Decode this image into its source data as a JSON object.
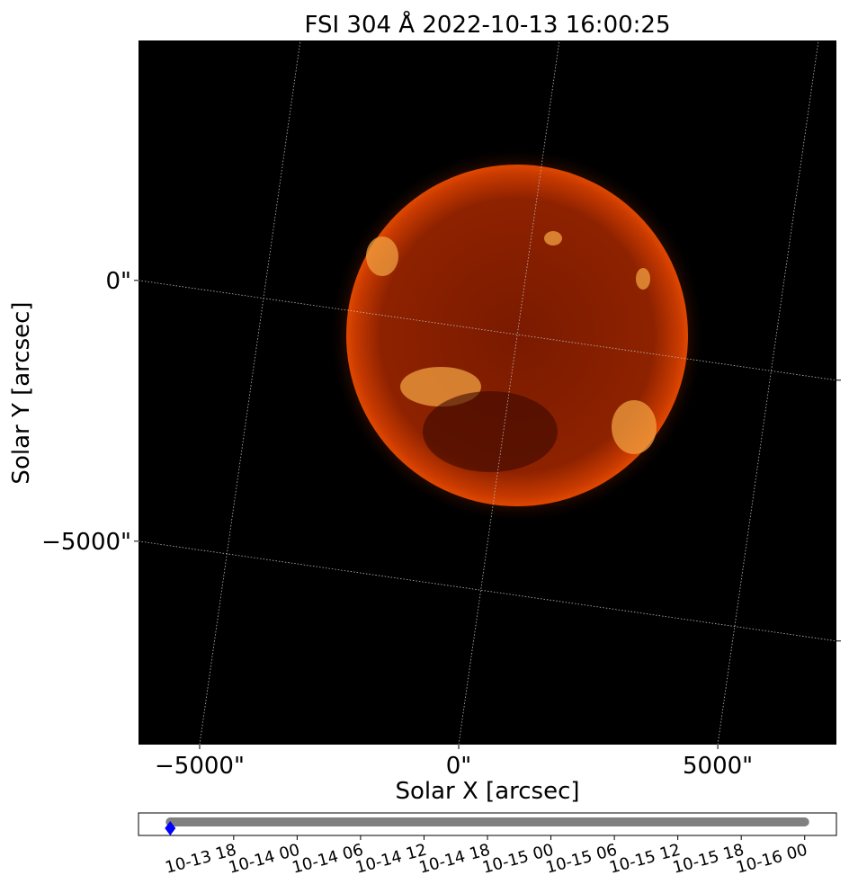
{
  "chart_data": [
    {
      "type": "image",
      "title": "FSI 304 Å 2022-10-13 16:00:25",
      "xlabel": "Solar X [arcsec]",
      "ylabel": "Solar Y [arcsec]",
      "xlim": [
        -6180,
        7290
      ],
      "ylim": [
        -8900,
        4600
      ],
      "xticks": [
        {
          "value": -5000,
          "label": "−5000\""
        },
        {
          "value": 0,
          "label": "0\""
        },
        {
          "value": 5000,
          "label": "5000\""
        }
      ],
      "yticks": [
        {
          "value": -5000,
          "label": "−5000\""
        },
        {
          "value": 0,
          "label": "0\""
        }
      ],
      "grid": true
    },
    {
      "type": "timeline",
      "xlim": [
        "10-13 09",
        "10-16 03"
      ],
      "xticks": [
        "10-13 18",
        "10-14 00",
        "10-14 06",
        "10-14 12",
        "10-14 18",
        "10-15 00",
        "10-15 06",
        "10-15 12",
        "10-15 18",
        "10-16 00"
      ],
      "series": [
        {
          "color": "#808080",
          "x": [
            "10-13 12",
            "10-16 00"
          ]
        },
        {
          "color": "#0000ff",
          "marker": "diamond",
          "x": [
            "10-13 12"
          ]
        }
      ]
    }
  ]
}
